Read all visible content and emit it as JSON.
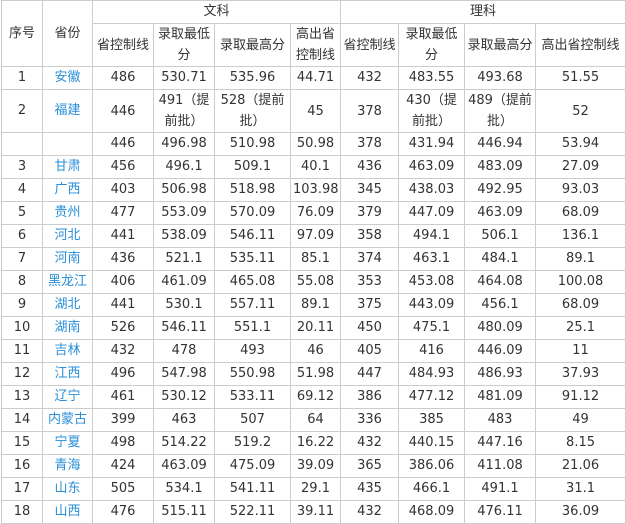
{
  "headers": {
    "seq": "序号",
    "province": "省份",
    "arts": "文科",
    "science": "理科",
    "cols": [
      "省控制线",
      "录取最低分",
      "录取最高分",
      "高出省控制线",
      "省控制线",
      "录取最低分",
      "录取最高分",
      "高出省控制线"
    ]
  },
  "rows": [
    {
      "seq": "1",
      "province": "安徽",
      "vals": [
        "486",
        "530.71",
        "535.96",
        "44.71",
        "432",
        "483.55",
        "493.68",
        "51.55"
      ]
    },
    {
      "seq": "2",
      "province": "福建",
      "vals": [
        "446",
        "491（提前批）",
        "528（提前批）",
        "45",
        "378",
        "430（提前批）",
        "489（提前批）",
        "52"
      ]
    },
    {
      "seq": "",
      "province": "",
      "vals": [
        "446",
        "496.98",
        "510.98",
        "50.98",
        "378",
        "431.94",
        "446.94",
        "53.94"
      ]
    },
    {
      "seq": "3",
      "province": "甘肃",
      "vals": [
        "456",
        "496.1",
        "509.1",
        "40.1",
        "436",
        "463.09",
        "483.09",
        "27.09"
      ]
    },
    {
      "seq": "4",
      "province": "广西",
      "vals": [
        "403",
        "506.98",
        "518.98",
        "103.98",
        "345",
        "438.03",
        "492.95",
        "93.03"
      ]
    },
    {
      "seq": "5",
      "province": "贵州",
      "vals": [
        "477",
        "553.09",
        "570.09",
        "76.09",
        "379",
        "447.09",
        "463.09",
        "68.09"
      ]
    },
    {
      "seq": "6",
      "province": "河北",
      "vals": [
        "441",
        "538.09",
        "546.11",
        "97.09",
        "358",
        "494.1",
        "506.1",
        "136.1"
      ]
    },
    {
      "seq": "7",
      "province": "河南",
      "vals": [
        "436",
        "521.1",
        "535.11",
        "85.1",
        "374",
        "463.1",
        "484.1",
        "89.1"
      ]
    },
    {
      "seq": "8",
      "province": "黑龙江",
      "vals": [
        "406",
        "461.09",
        "465.08",
        "55.08",
        "353",
        "453.08",
        "464.08",
        "100.08"
      ]
    },
    {
      "seq": "9",
      "province": "湖北",
      "vals": [
        "441",
        "530.1",
        "557.11",
        "89.1",
        "375",
        "443.09",
        "456.1",
        "68.09"
      ]
    },
    {
      "seq": "10",
      "province": "湖南",
      "vals": [
        "526",
        "546.11",
        "551.1",
        "20.11",
        "450",
        "475.1",
        "480.09",
        "25.1"
      ]
    },
    {
      "seq": "11",
      "province": "吉林",
      "vals": [
        "432",
        "478",
        "493",
        "46",
        "405",
        "416",
        "446.09",
        "11"
      ]
    },
    {
      "seq": "12",
      "province": "江西",
      "vals": [
        "496",
        "547.98",
        "550.98",
        "51.98",
        "447",
        "484.93",
        "486.93",
        "37.93"
      ]
    },
    {
      "seq": "13",
      "province": "辽宁",
      "vals": [
        "461",
        "530.12",
        "533.11",
        "69.12",
        "386",
        "477.12",
        "481.09",
        "91.12"
      ]
    },
    {
      "seq": "14",
      "province": "内蒙古",
      "vals": [
        "399",
        "463",
        "507",
        "64",
        "336",
        "385",
        "483",
        "49"
      ]
    },
    {
      "seq": "15",
      "province": "宁夏",
      "vals": [
        "498",
        "514.22",
        "519.2",
        "16.22",
        "432",
        "440.15",
        "447.16",
        "8.15"
      ]
    },
    {
      "seq": "16",
      "province": "青海",
      "vals": [
        "424",
        "463.09",
        "475.09",
        "39.09",
        "365",
        "386.06",
        "411.08",
        "21.06"
      ]
    },
    {
      "seq": "17",
      "province": "山东",
      "vals": [
        "505",
        "534.1",
        "541.11",
        "29.1",
        "435",
        "466.1",
        "491.1",
        "31.1"
      ]
    },
    {
      "seq": "18",
      "province": "山西",
      "vals": [
        "476",
        "515.11",
        "522.11",
        "39.11",
        "432",
        "468.09",
        "476.11",
        "36.09"
      ]
    }
  ]
}
